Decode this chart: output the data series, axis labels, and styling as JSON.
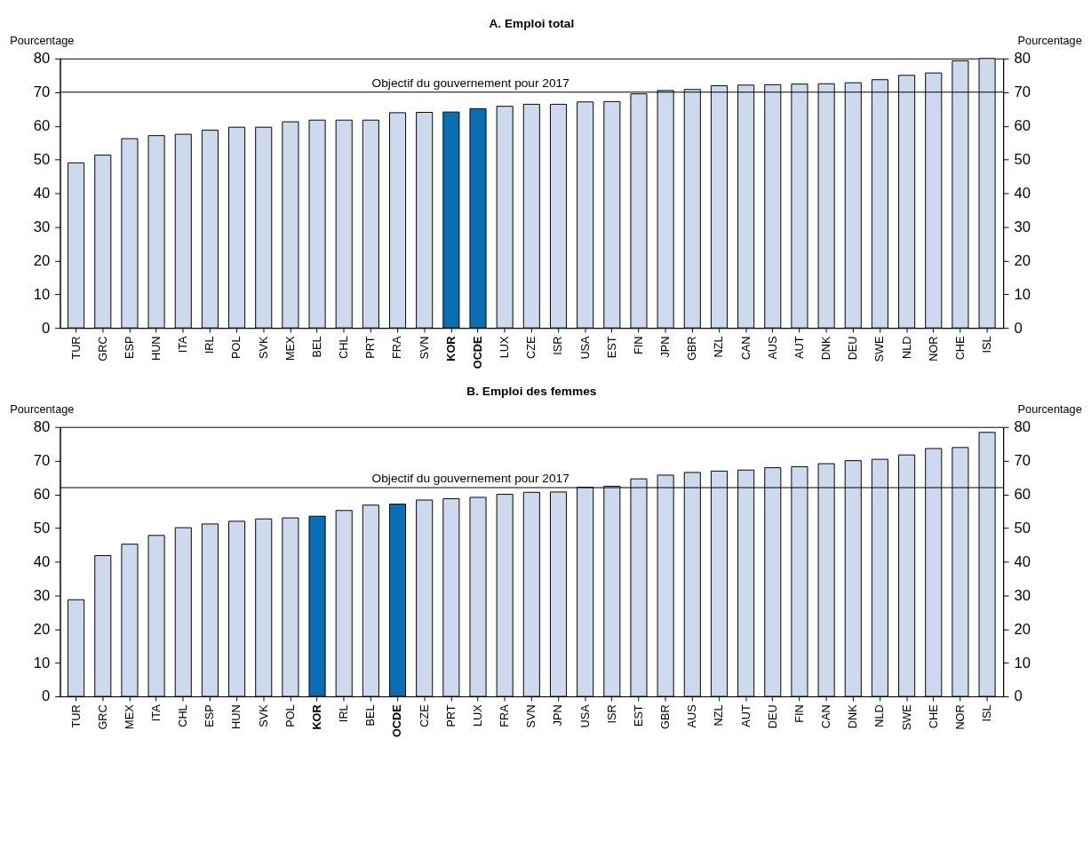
{
  "chart_data": [
    {
      "type": "bar",
      "title": "A. Emploi total",
      "ylabel": "Pourcentage",
      "y2label": "Pourcentage",
      "categories": [
        "TUR",
        "GRC",
        "ESP",
        "HUN",
        "ITA",
        "IRL",
        "POL",
        "SVK",
        "MEX",
        "BEL",
        "CHL",
        "PRT",
        "FRA",
        "SVN",
        "KOR",
        "OCDE",
        "LUX",
        "CZE",
        "ISR",
        "USA",
        "EST",
        "FIN",
        "JPN",
        "GBR",
        "NZL",
        "CAN",
        "AUS",
        "AUT",
        "DNK",
        "DEU",
        "SWE",
        "NLD",
        "NOR",
        "CHE",
        "ISL"
      ],
      "values": [
        49,
        51.3,
        56.2,
        57.1,
        57.5,
        58.7,
        59.6,
        59.6,
        61.2,
        61.7,
        61.7,
        61.7,
        63.9,
        64,
        64.1,
        65.1,
        65.8,
        66.4,
        66.4,
        67.1,
        67.2,
        69.5,
        70.5,
        70.8,
        71.9,
        72.1,
        72.2,
        72.4,
        72.5,
        72.8,
        73.7,
        75,
        75.7,
        79.3,
        80
      ],
      "colors": [
        "#cdd9ec",
        "#cdd9ec",
        "#cdd9ec",
        "#cdd9ec",
        "#cdd9ec",
        "#cdd9ec",
        "#cdd9ec",
        "#cdd9ec",
        "#cdd9ec",
        "#cdd9ec",
        "#cdd9ec",
        "#cdd9ec",
        "#cdd9ec",
        "#cdd9ec",
        "#0a6eb4",
        "#0a6eb4",
        "#cdd9ec",
        "#cdd9ec",
        "#cdd9ec",
        "#cdd9ec",
        "#cdd9ec",
        "#cdd9ec",
        "#cdd9ec",
        "#cdd9ec",
        "#cdd9ec",
        "#cdd9ec",
        "#cdd9ec",
        "#cdd9ec",
        "#cdd9ec",
        "#cdd9ec",
        "#cdd9ec",
        "#cdd9ec",
        "#cdd9ec",
        "#cdd9ec",
        "#cdd9ec"
      ],
      "ylim": [
        0,
        80
      ],
      "yticks": [
        0,
        10,
        20,
        30,
        40,
        50,
        60,
        70,
        80
      ],
      "y2lim": [
        0,
        80
      ],
      "y2ticks": [
        0,
        10,
        20,
        30,
        40,
        50,
        60,
        70,
        80
      ],
      "ref_lines": [
        {
          "axis": "y",
          "value": 70,
          "label": "Objectif du gouvernement pour 2017",
          "color": "#000000"
        }
      ],
      "grid": false
    },
    {
      "type": "bar",
      "title": "B. Emploi des femmes",
      "ylabel": "Pourcentage",
      "y2label": "Pourcentage",
      "categories": [
        "TUR",
        "GRC",
        "MEX",
        "ITA",
        "CHL",
        "ESP",
        "HUN",
        "SVK",
        "POL",
        "KOR",
        "IRL",
        "BEL",
        "OCDE",
        "CZE",
        "PRT",
        "LUX",
        "FRA",
        "SVN",
        "JPN",
        "USA",
        "ISR",
        "EST",
        "GBR",
        "AUS",
        "NZL",
        "AUT",
        "DEU",
        "FIN",
        "CAN",
        "DNK",
        "NLD",
        "SWE",
        "CHE",
        "NOR",
        "ISL"
      ],
      "values": [
        28.7,
        41.8,
        45.2,
        47.8,
        50.1,
        51.2,
        52,
        52.7,
        53,
        53.5,
        55.2,
        56.8,
        57.1,
        58.3,
        58.7,
        59.1,
        60,
        60.6,
        60.7,
        62.1,
        62.4,
        64.6,
        65.7,
        66.5,
        66.9,
        67.2,
        67.9,
        68.2,
        69.1,
        70,
        70.4,
        71.7,
        73.6,
        73.9,
        78.4
      ],
      "colors": [
        "#cdd9ec",
        "#cdd9ec",
        "#cdd9ec",
        "#cdd9ec",
        "#cdd9ec",
        "#cdd9ec",
        "#cdd9ec",
        "#cdd9ec",
        "#cdd9ec",
        "#0a6eb4",
        "#cdd9ec",
        "#cdd9ec",
        "#0a6eb4",
        "#cdd9ec",
        "#cdd9ec",
        "#cdd9ec",
        "#cdd9ec",
        "#cdd9ec",
        "#cdd9ec",
        "#cdd9ec",
        "#cdd9ec",
        "#cdd9ec",
        "#cdd9ec",
        "#cdd9ec",
        "#cdd9ec",
        "#cdd9ec",
        "#cdd9ec",
        "#cdd9ec",
        "#cdd9ec",
        "#cdd9ec",
        "#cdd9ec",
        "#cdd9ec",
        "#cdd9ec",
        "#cdd9ec",
        "#cdd9ec"
      ],
      "ylim": [
        0,
        80
      ],
      "yticks": [
        0,
        10,
        20,
        30,
        40,
        50,
        60,
        70,
        80
      ],
      "y2lim": [
        0,
        80
      ],
      "y2ticks": [
        0,
        10,
        20,
        30,
        40,
        50,
        60,
        70,
        80
      ],
      "ref_lines": [
        {
          "axis": "y",
          "value": 62,
          "label": "Objectif du gouvernement pour 2017",
          "color": "#000000"
        }
      ],
      "grid": false
    }
  ]
}
